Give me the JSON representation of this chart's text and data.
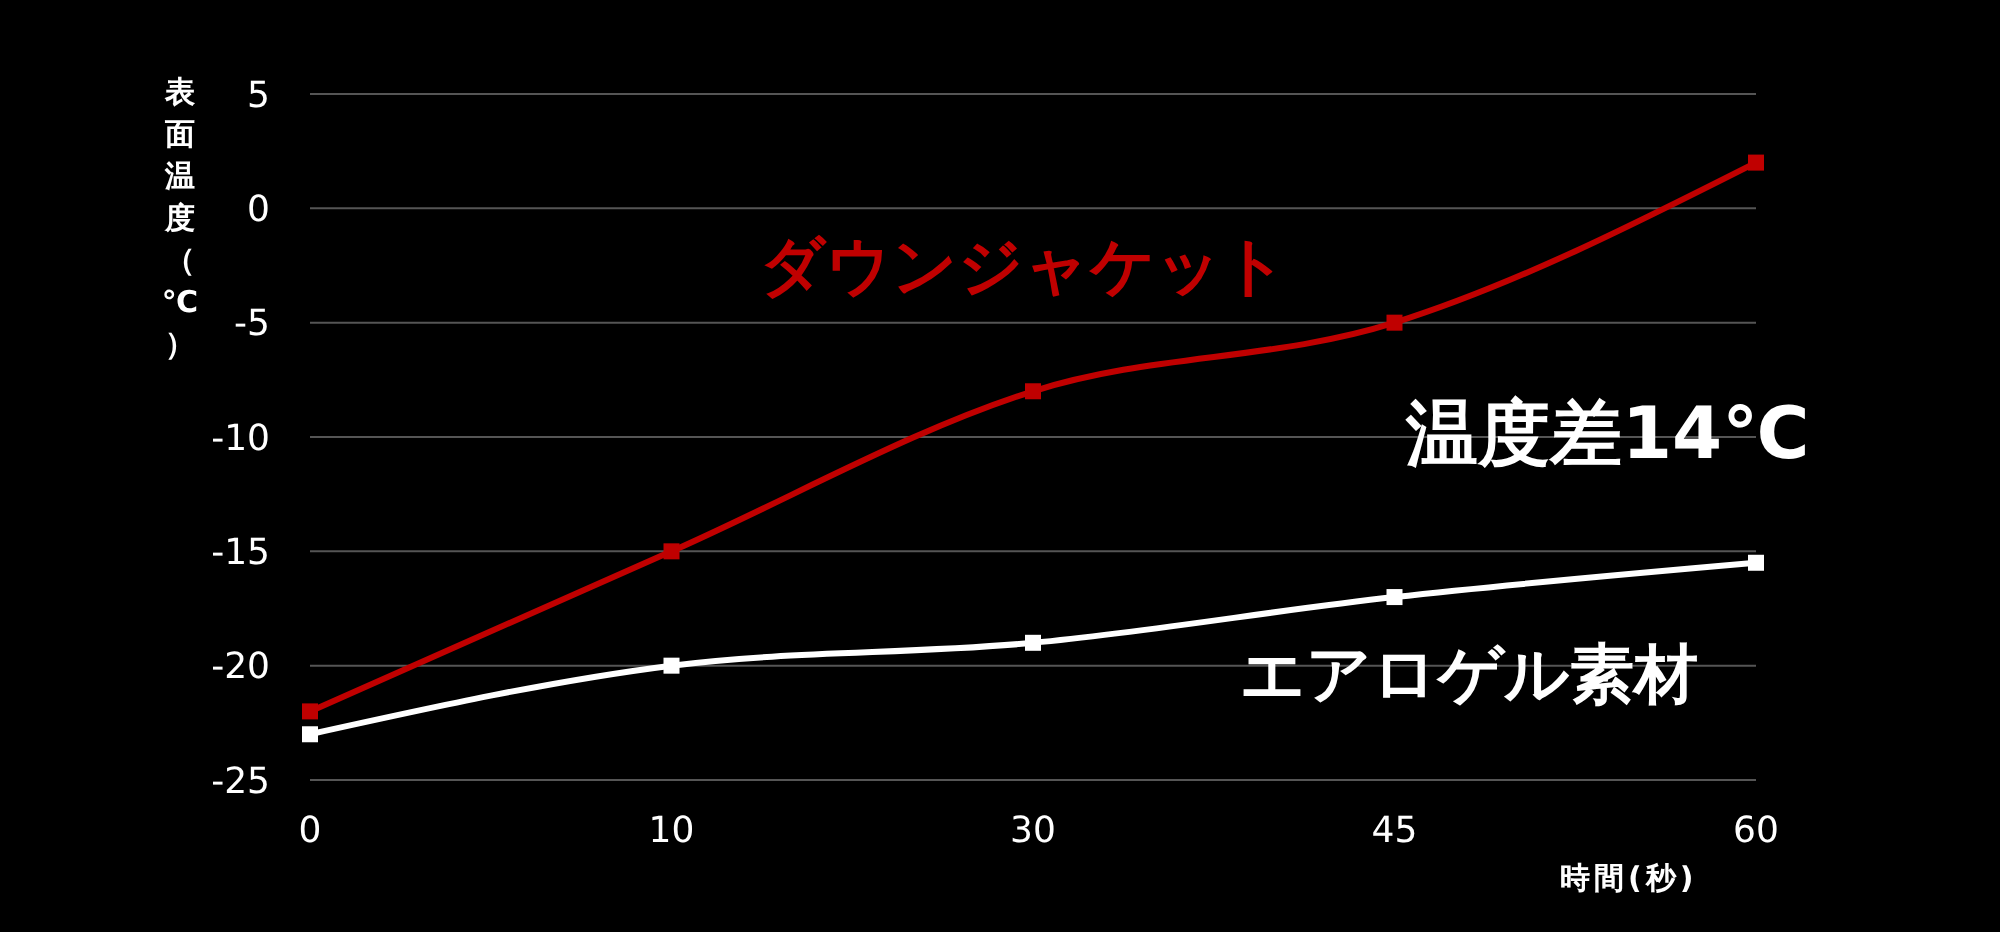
{
  "chart_data": {
    "type": "line",
    "xlabel": "時間(秒)",
    "ylabel": "表面温度（℃）",
    "categories": [
      "0",
      "10",
      "30",
      "45",
      "60"
    ],
    "series": [
      {
        "name": "ダウンジャケット",
        "color": "#c00000",
        "values": [
          -22,
          -15,
          -8,
          -5,
          2
        ]
      },
      {
        "name": "エアロゲル素材",
        "color": "#ffffff",
        "values": [
          -23,
          -20,
          -19,
          -17,
          -15.5
        ]
      }
    ],
    "annotations": [
      "温度差14℃"
    ],
    "ylim": [
      -25,
      5
    ],
    "yticks": [
      -25,
      -20,
      -15,
      -10,
      -5,
      0,
      5
    ],
    "grid": "y",
    "marker": "square",
    "line_style": "solid"
  }
}
